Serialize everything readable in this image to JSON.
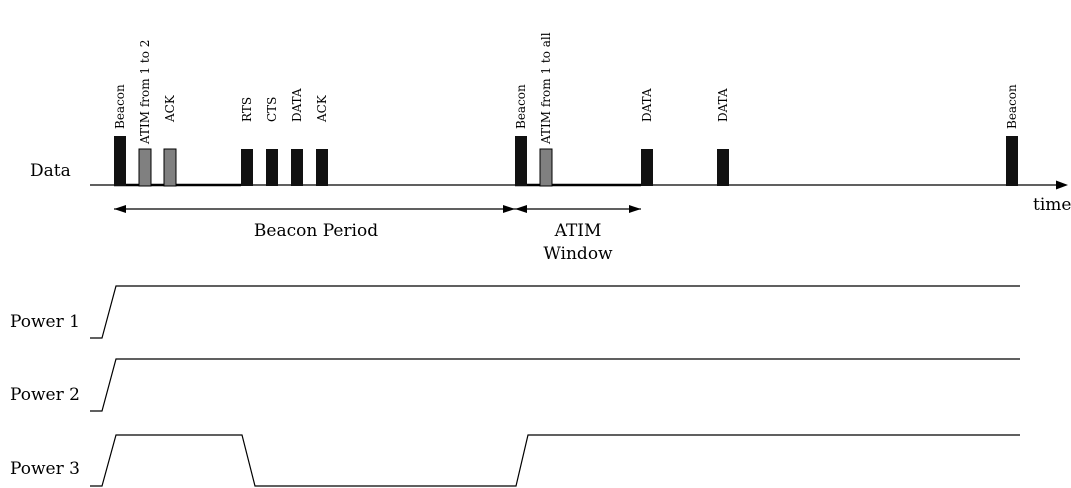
{
  "rows": {
    "data": "Data",
    "power1": "Power 1",
    "power2": "Power 2",
    "power3": "Power 3"
  },
  "axis": {
    "time": "time"
  },
  "spans": {
    "beacon_period": "Beacon Period",
    "atim_window_1": "ATIM",
    "atim_window_2": "Window"
  },
  "frames": [
    {
      "label": "Beacon",
      "kind": "beacon"
    },
    {
      "label": "ATIM from 1 to 2",
      "kind": "atim"
    },
    {
      "label": "ACK",
      "kind": "atim"
    },
    {
      "label": "RTS",
      "kind": "data"
    },
    {
      "label": "CTS",
      "kind": "data"
    },
    {
      "label": "DATA",
      "kind": "data"
    },
    {
      "label": "ACK",
      "kind": "data"
    },
    {
      "label": "Beacon",
      "kind": "beacon"
    },
    {
      "label": "ATIM from 1 to all",
      "kind": "atim"
    },
    {
      "label": "DATA",
      "kind": "data"
    },
    {
      "label": "DATA",
      "kind": "data"
    },
    {
      "label": "Beacon",
      "kind": "beacon"
    }
  ],
  "colors": {
    "solid_frame": "#111111",
    "atim_frame": "#808080",
    "line": "#000000"
  }
}
